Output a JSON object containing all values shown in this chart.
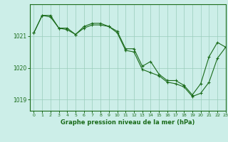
{
  "title": "Graphe pression niveau de la mer (hPa)",
  "background_color": "#cceee8",
  "grid_color": "#99ccbb",
  "line_color": "#1a6b1a",
  "xlim": [
    -0.5,
    23
  ],
  "ylim": [
    1018.65,
    1022.0
  ],
  "yticks": [
    1019,
    1020,
    1021
  ],
  "xticks": [
    0,
    1,
    2,
    3,
    4,
    5,
    6,
    7,
    8,
    9,
    10,
    11,
    12,
    13,
    14,
    15,
    16,
    17,
    18,
    19,
    20,
    21,
    22,
    23
  ],
  "series1": {
    "x": [
      0,
      1,
      2,
      3,
      4,
      5,
      6,
      7,
      8,
      9,
      10,
      11,
      12,
      13,
      14,
      15,
      16,
      17,
      18,
      19,
      20,
      21,
      22,
      23
    ],
    "y": [
      1021.1,
      1021.65,
      1021.65,
      1021.25,
      1021.25,
      1021.05,
      1021.3,
      1021.4,
      1021.4,
      1021.3,
      1021.15,
      1020.6,
      1020.6,
      1020.05,
      1020.2,
      1019.8,
      1019.6,
      1019.6,
      1019.45,
      1019.15,
      1019.5,
      1020.35,
      1020.8,
      1020.65
    ]
  },
  "series2": {
    "x": [
      0,
      1,
      2,
      3,
      4,
      5,
      6,
      7,
      8,
      9,
      10,
      11,
      12,
      13,
      14,
      15,
      16,
      17,
      18,
      19,
      20,
      21,
      22,
      23
    ],
    "y": [
      1021.1,
      1021.65,
      1021.6,
      1021.25,
      1021.2,
      1021.05,
      1021.25,
      1021.35,
      1021.35,
      1021.3,
      1021.1,
      1020.55,
      1020.5,
      1019.95,
      1019.85,
      1019.75,
      1019.55,
      1019.5,
      1019.4,
      1019.1,
      1019.2,
      1019.55,
      1020.3,
      1020.65
    ]
  }
}
